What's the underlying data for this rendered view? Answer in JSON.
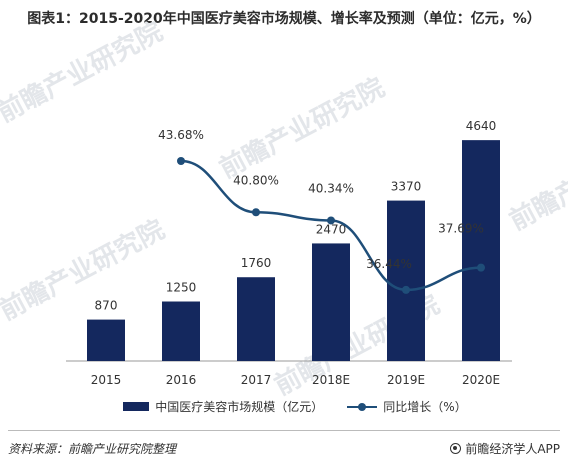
{
  "title": "图表1：2015-2020年中国医疗美容市场规模、增长率及预测（单位：亿元，%）",
  "watermark": "前瞻产业研究院",
  "chart_data": {
    "type": "bar",
    "categories": [
      "2015",
      "2016",
      "2017",
      "2018E",
      "2019E",
      "2020E"
    ],
    "series": [
      {
        "name": "中国医疗美容市场规模（亿元）",
        "type": "bar",
        "values": [
          870,
          1250,
          1760,
          2470,
          3370,
          4640
        ],
        "labels": [
          "870",
          "1250",
          "1760",
          "2470",
          "3370",
          "4640"
        ],
        "color": "#14285e"
      },
      {
        "name": "同比增长（%）",
        "type": "line",
        "values": [
          null,
          43.68,
          40.8,
          40.34,
          36.44,
          37.69
        ],
        "labels": [
          "",
          "43.68%",
          "40.80%",
          "40.34%",
          "36.44%",
          "37.69%"
        ],
        "color": "#1f4e79"
      }
    ],
    "legend_position": "bottom",
    "grid": false
  },
  "legend": {
    "bar_label": "中国医疗美容市场规模（亿元）",
    "line_label": "同比增长（%）"
  },
  "footer": {
    "source": "资料来源：前瞻产业研究院整理",
    "brand": "前瞻经济学人APP"
  }
}
